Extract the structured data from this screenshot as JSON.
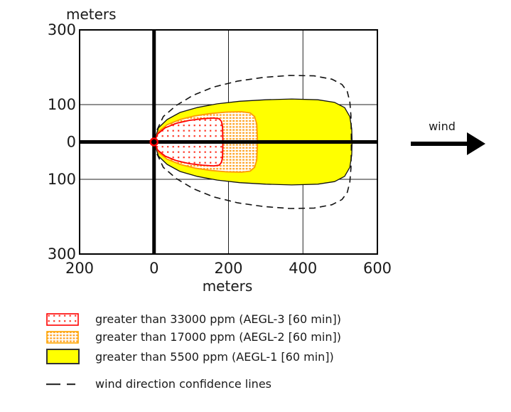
{
  "chart_data": {
    "type": "area",
    "description": "ALOHA-style toxic threat zone plot with three nested concentration footprints and wind direction confidence lines",
    "xlabel": "meters",
    "ylabel": "meters",
    "xlim": [
      -200,
      600
    ],
    "ylim": [
      -300,
      300
    ],
    "x_ticks": [
      {
        "v": -200,
        "label": "200"
      },
      {
        "v": 0,
        "label": "0"
      },
      {
        "v": 200,
        "label": "200"
      },
      {
        "v": 400,
        "label": "400"
      },
      {
        "v": 600,
        "label": "600"
      }
    ],
    "y_ticks": [
      {
        "v": 300,
        "label": "300"
      },
      {
        "v": 100,
        "label": "100"
      },
      {
        "v": 0,
        "label": "0"
      },
      {
        "v": -100,
        "label": "100"
      },
      {
        "v": -300,
        "label": "300"
      }
    ],
    "grid": {
      "v": [
        200,
        400
      ],
      "h": [
        100,
        -100
      ]
    },
    "axes_origin": {
      "x": 0,
      "y": 0
    },
    "source_point": {
      "x": 0,
      "y": 0
    },
    "series": [
      {
        "id": "aegl1",
        "name": "AEGL-1 zone",
        "threshold_ppm": 5500,
        "color": "#ffff00",
        "stroke": "#111111",
        "fill": "solid",
        "outline": [
          [
            0,
            0
          ],
          [
            12,
            38
          ],
          [
            35,
            60
          ],
          [
            70,
            79
          ],
          [
            115,
            92
          ],
          [
            170,
            102
          ],
          [
            230,
            109
          ],
          [
            300,
            113
          ],
          [
            370,
            115
          ],
          [
            440,
            113
          ],
          [
            485,
            106
          ],
          [
            512,
            92
          ],
          [
            526,
            68
          ],
          [
            531,
            35
          ],
          [
            532,
            0
          ],
          [
            531,
            -35
          ],
          [
            526,
            -68
          ],
          [
            512,
            -92
          ],
          [
            485,
            -106
          ],
          [
            440,
            -113
          ],
          [
            370,
            -115
          ],
          [
            300,
            -113
          ],
          [
            230,
            -109
          ],
          [
            170,
            -102
          ],
          [
            115,
            -92
          ],
          [
            70,
            -79
          ],
          [
            35,
            -60
          ],
          [
            12,
            -38
          ]
        ]
      },
      {
        "id": "aegl2",
        "name": "AEGL-2 zone",
        "threshold_ppm": 17000,
        "color": "#ffa500",
        "stroke": "#ff9900",
        "fill": "pattern",
        "outline": [
          [
            0,
            0
          ],
          [
            12,
            28
          ],
          [
            35,
            46
          ],
          [
            70,
            60
          ],
          [
            110,
            70
          ],
          [
            150,
            76
          ],
          [
            195,
            80
          ],
          [
            235,
            81
          ],
          [
            258,
            78
          ],
          [
            270,
            68
          ],
          [
            276,
            48
          ],
          [
            278,
            0
          ],
          [
            276,
            -48
          ],
          [
            270,
            -68
          ],
          [
            258,
            -78
          ],
          [
            235,
            -81
          ],
          [
            195,
            -80
          ],
          [
            150,
            -76
          ],
          [
            110,
            -70
          ],
          [
            70,
            -60
          ],
          [
            35,
            -46
          ],
          [
            12,
            -28
          ]
        ]
      },
      {
        "id": "aegl3",
        "name": "AEGL-3 zone",
        "threshold_ppm": 33000,
        "color": "#ff0000",
        "stroke": "#ff0000",
        "fill": "pattern",
        "outline": [
          [
            0,
            0
          ],
          [
            10,
            22
          ],
          [
            30,
            38
          ],
          [
            60,
            50
          ],
          [
            95,
            58
          ],
          [
            130,
            62
          ],
          [
            160,
            64
          ],
          [
            175,
            62
          ],
          [
            181,
            55
          ],
          [
            184,
            42
          ],
          [
            185,
            0
          ],
          [
            184,
            -42
          ],
          [
            181,
            -55
          ],
          [
            175,
            -62
          ],
          [
            160,
            -64
          ],
          [
            130,
            -62
          ],
          [
            95,
            -58
          ],
          [
            60,
            -50
          ],
          [
            30,
            -38
          ],
          [
            10,
            -22
          ]
        ]
      }
    ],
    "confidence_lines": {
      "name": "wind direction confidence lines",
      "color": "#111111",
      "points": [
        [
          8,
          32
        ],
        [
          25,
          68
        ],
        [
          60,
          98
        ],
        [
          105,
          125
        ],
        [
          160,
          147
        ],
        [
          225,
          163
        ],
        [
          295,
          173
        ],
        [
          365,
          178
        ],
        [
          430,
          177
        ],
        [
          478,
          168
        ],
        [
          505,
          154
        ],
        [
          519,
          135
        ],
        [
          526,
          108
        ],
        [
          529,
          70
        ],
        [
          530,
          20
        ],
        [
          530,
          -20
        ],
        [
          529,
          -70
        ],
        [
          526,
          -108
        ],
        [
          519,
          -135
        ],
        [
          505,
          -154
        ],
        [
          478,
          -168
        ],
        [
          430,
          -177
        ],
        [
          365,
          -178
        ],
        [
          295,
          -173
        ],
        [
          225,
          -163
        ],
        [
          160,
          -147
        ],
        [
          105,
          -125
        ],
        [
          60,
          -98
        ],
        [
          25,
          -68
        ],
        [
          8,
          -32
        ]
      ]
    }
  },
  "labels": {
    "y_axis_unit": "meters",
    "x_axis_unit": "meters",
    "wind": "wind"
  },
  "legend": {
    "items": [
      {
        "id": "aegl3",
        "label": "greater than 33000 ppm (AEGL-3 [60 min])"
      },
      {
        "id": "aegl2",
        "label": "greater than 17000 ppm (AEGL-2 [60 min])"
      },
      {
        "id": "aegl1",
        "label": "greater than 5500 ppm (AEGL-1 [60 min])"
      },
      {
        "id": "confidence",
        "label": "wind direction confidence lines"
      }
    ]
  },
  "colors": {
    "aegl3": "#ff0000",
    "aegl2": "#ffa500",
    "aegl1": "#ffff00",
    "lines": "#111111"
  }
}
